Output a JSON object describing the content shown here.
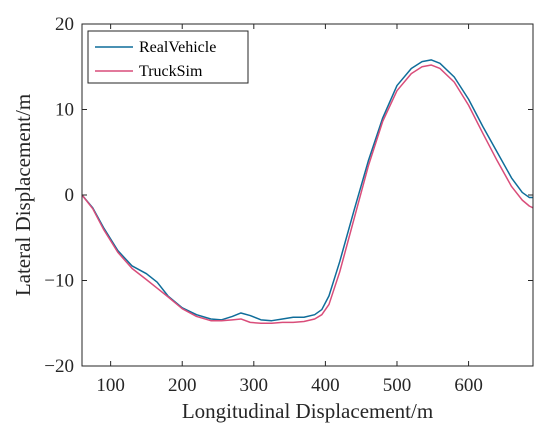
{
  "chart_data": {
    "type": "line",
    "title": "",
    "xlabel": "Longitudinal Displacement/m",
    "ylabel": "Lateral Displacement/m",
    "xlim": [
      60,
      690
    ],
    "ylim": [
      -20,
      20
    ],
    "xticks": [
      100,
      200,
      300,
      400,
      500,
      600
    ],
    "yticks": [
      -20,
      -10,
      0,
      10,
      20
    ],
    "xtick_labels": [
      "100",
      "200",
      "300",
      "400",
      "500",
      "600"
    ],
    "ytick_labels": [
      "−20",
      "−10",
      "0",
      "10",
      "20"
    ],
    "grid": false,
    "legend_position": "top-left",
    "series": [
      {
        "name": "RealVehicle",
        "color": "#0f6d9a",
        "x": [
          60,
          75,
          90,
          110,
          130,
          150,
          165,
          180,
          200,
          220,
          240,
          255,
          270,
          282,
          295,
          310,
          325,
          340,
          355,
          370,
          385,
          395,
          405,
          420,
          440,
          460,
          480,
          500,
          520,
          535,
          548,
          560,
          580,
          600,
          620,
          640,
          660,
          675,
          685,
          690
        ],
        "y": [
          0,
          -1.5,
          -3.8,
          -6.5,
          -8.3,
          -9.2,
          -10.2,
          -11.8,
          -13.2,
          -14.0,
          -14.5,
          -14.6,
          -14.2,
          -13.8,
          -14.1,
          -14.6,
          -14.7,
          -14.5,
          -14.3,
          -14.3,
          -14.0,
          -13.4,
          -11.8,
          -7.8,
          -1.8,
          4.0,
          9.0,
          12.8,
          14.8,
          15.6,
          15.8,
          15.4,
          13.8,
          11.2,
          8.0,
          5.0,
          2.0,
          0.3,
          -0.3,
          -0.3
        ]
      },
      {
        "name": "TruckSim",
        "color": "#d94d7a",
        "x": [
          60,
          75,
          90,
          110,
          130,
          150,
          165,
          180,
          200,
          220,
          240,
          255,
          270,
          282,
          295,
          310,
          325,
          340,
          355,
          370,
          385,
          395,
          405,
          420,
          440,
          460,
          480,
          500,
          520,
          535,
          548,
          560,
          580,
          600,
          620,
          640,
          660,
          675,
          685,
          690
        ],
        "y": [
          0,
          -1.6,
          -4.0,
          -6.7,
          -8.6,
          -9.9,
          -10.9,
          -11.9,
          -13.3,
          -14.2,
          -14.7,
          -14.7,
          -14.6,
          -14.5,
          -14.9,
          -15.0,
          -15.0,
          -14.9,
          -14.9,
          -14.8,
          -14.5,
          -14.0,
          -12.8,
          -9.0,
          -2.8,
          3.4,
          8.6,
          12.2,
          14.2,
          15.0,
          15.2,
          14.8,
          13.2,
          10.5,
          7.2,
          4.0,
          1.0,
          -0.6,
          -1.3,
          -1.5
        ]
      }
    ]
  }
}
